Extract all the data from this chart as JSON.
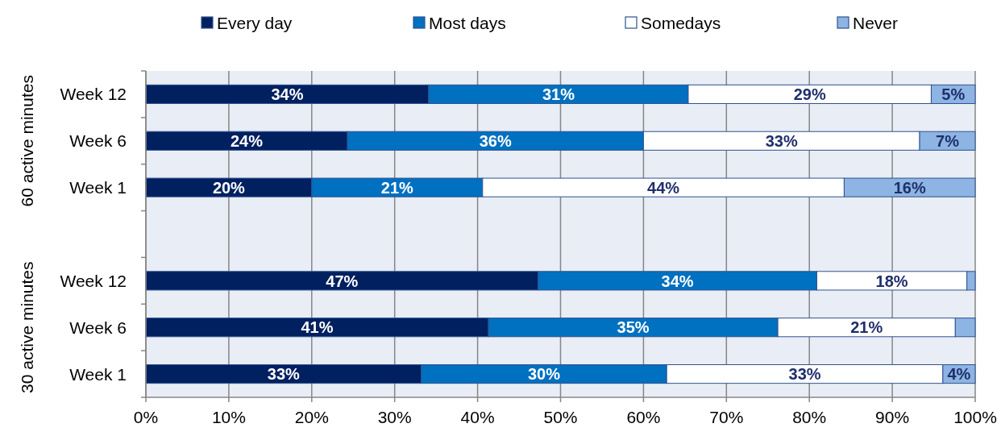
{
  "chart_data": {
    "type": "bar",
    "orientation": "horizontal",
    "stacked": true,
    "categories": [
      "Week 12",
      "Week 6",
      "Week 1",
      null,
      "Week 12",
      "Week 6",
      "Week 1"
    ],
    "series": [
      {
        "name": "Every day",
        "color": "#002060",
        "values": [
          34.1,
          24.3,
          20.0,
          null,
          47.3,
          41.3,
          33.2
        ],
        "value_labels": [
          "34%",
          "24%",
          "20%",
          null,
          "47%",
          "41%",
          "33%"
        ]
      },
      {
        "name": "Most days",
        "color": "#0070c0",
        "values": [
          31.3,
          35.7,
          20.6,
          null,
          33.6,
          34.9,
          29.6
        ],
        "value_labels": [
          "31%",
          "36%",
          "21%",
          null,
          "34%",
          "35%",
          "30%"
        ]
      },
      {
        "name": "Somedays",
        "color": "#ffffff",
        "values": [
          29.3,
          33.3,
          43.6,
          null,
          18.1,
          21.4,
          33.3
        ],
        "value_labels": [
          "29%",
          "33%",
          "44%",
          null,
          "18%",
          "21%",
          "33%"
        ]
      },
      {
        "name": "Never",
        "color": "#8db4e2",
        "values": [
          5.3,
          6.7,
          15.8,
          null,
          1.0,
          2.4,
          3.9
        ],
        "value_labels": [
          "5%",
          "7%",
          "16%",
          null,
          null,
          null,
          "4%"
        ]
      }
    ],
    "xlim": [
      0,
      100
    ],
    "xticks": [
      {
        "value": 0,
        "label": "0%"
      },
      {
        "value": 10,
        "label": "10%"
      },
      {
        "value": 20,
        "label": "20%"
      },
      {
        "value": 30,
        "label": "30%"
      },
      {
        "value": 40,
        "label": "40%"
      },
      {
        "value": 50,
        "label": "50%"
      },
      {
        "value": 60,
        "label": "60%"
      },
      {
        "value": 70,
        "label": "70%"
      },
      {
        "value": 80,
        "label": "80%"
      },
      {
        "value": 90,
        "label": "90%"
      },
      {
        "value": 100,
        "label": "100%"
      }
    ],
    "grid": "x",
    "legend": "top",
    "annotations": [
      "60 active minutes",
      "30 active minutes"
    ]
  }
}
